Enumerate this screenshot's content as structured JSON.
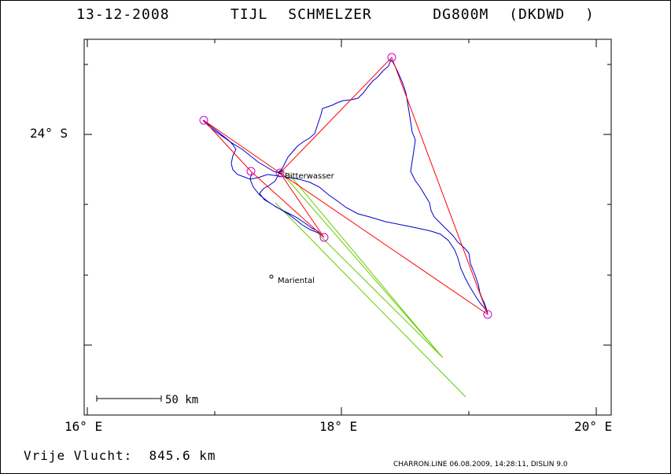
{
  "header": {
    "date": "13-12-2008",
    "pilot": "TIJL SCHMELZER",
    "glider": "DG800M (DKDWD )"
  },
  "axes": {
    "x_ticks": [
      "16° E",
      "18° E",
      "20° E"
    ],
    "y_ticks": [
      "24° S"
    ]
  },
  "places": {
    "bitterwasser": "Bitterwasser",
    "mariental": "Mariental"
  },
  "scale_bar": {
    "label": "50 km"
  },
  "footer": {
    "distance_label": "Vrije Vlucht:",
    "distance_value": "845.6 km",
    "credits": "CHARRON.LINE 06.08.2009, 14:28:11, DISLIN 9.0"
  },
  "colors": {
    "track": "#0000cc",
    "task": "#ff0000",
    "engine": "#66cc00",
    "turnpoint": "#cc00cc"
  }
}
